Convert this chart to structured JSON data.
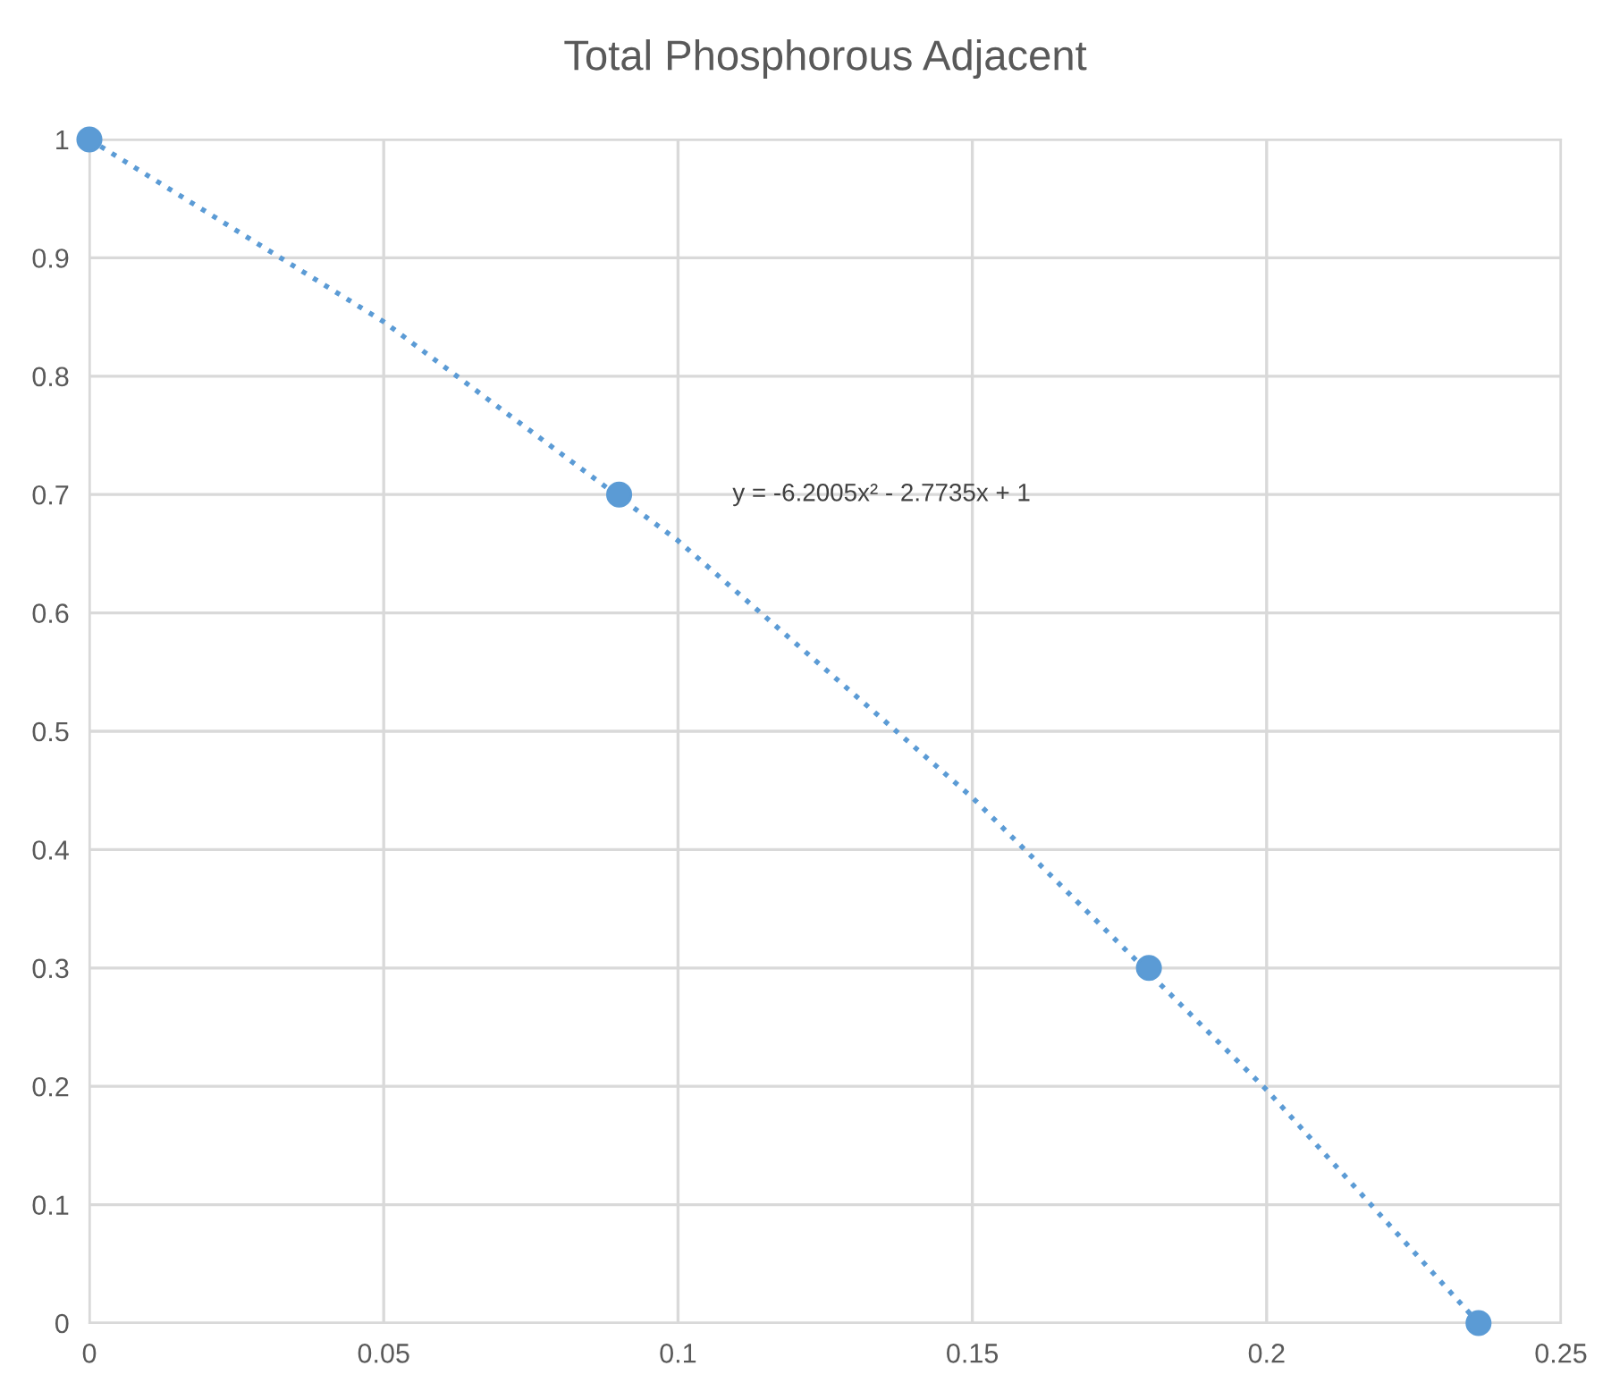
{
  "chart_data": {
    "type": "scatter",
    "title": "Total Phosphorous Adjacent",
    "series": [
      {
        "color": "#5b9bd5",
        "marker": "circle",
        "x": [
          0,
          0.09,
          0.18,
          0.236
        ],
        "values": [
          1,
          0.7,
          0.3,
          0
        ]
      },
      {
        "type": "line",
        "color": "#5b9bd5",
        "marker": "none",
        "line_style": "dotted",
        "x": [
          0,
          0.05,
          0.1,
          0.15,
          0.2,
          0.236
        ],
        "values": [
          1,
          0.846,
          0.661,
          0.444,
          0.197,
          0
        ]
      }
    ],
    "annotations": [
      "y = -6.2005x² - 2.7735x + 1"
    ],
    "xlim": [
      0,
      0.25
    ],
    "xticks": [
      0,
      0.05,
      0.1,
      0.15,
      0.2,
      0.25
    ],
    "ylim": [
      0,
      1
    ],
    "yticks": [
      0,
      0.1,
      0.2,
      0.3,
      0.4,
      0.5,
      0.6,
      0.7,
      0.8,
      0.9,
      1
    ],
    "grid": true
  }
}
